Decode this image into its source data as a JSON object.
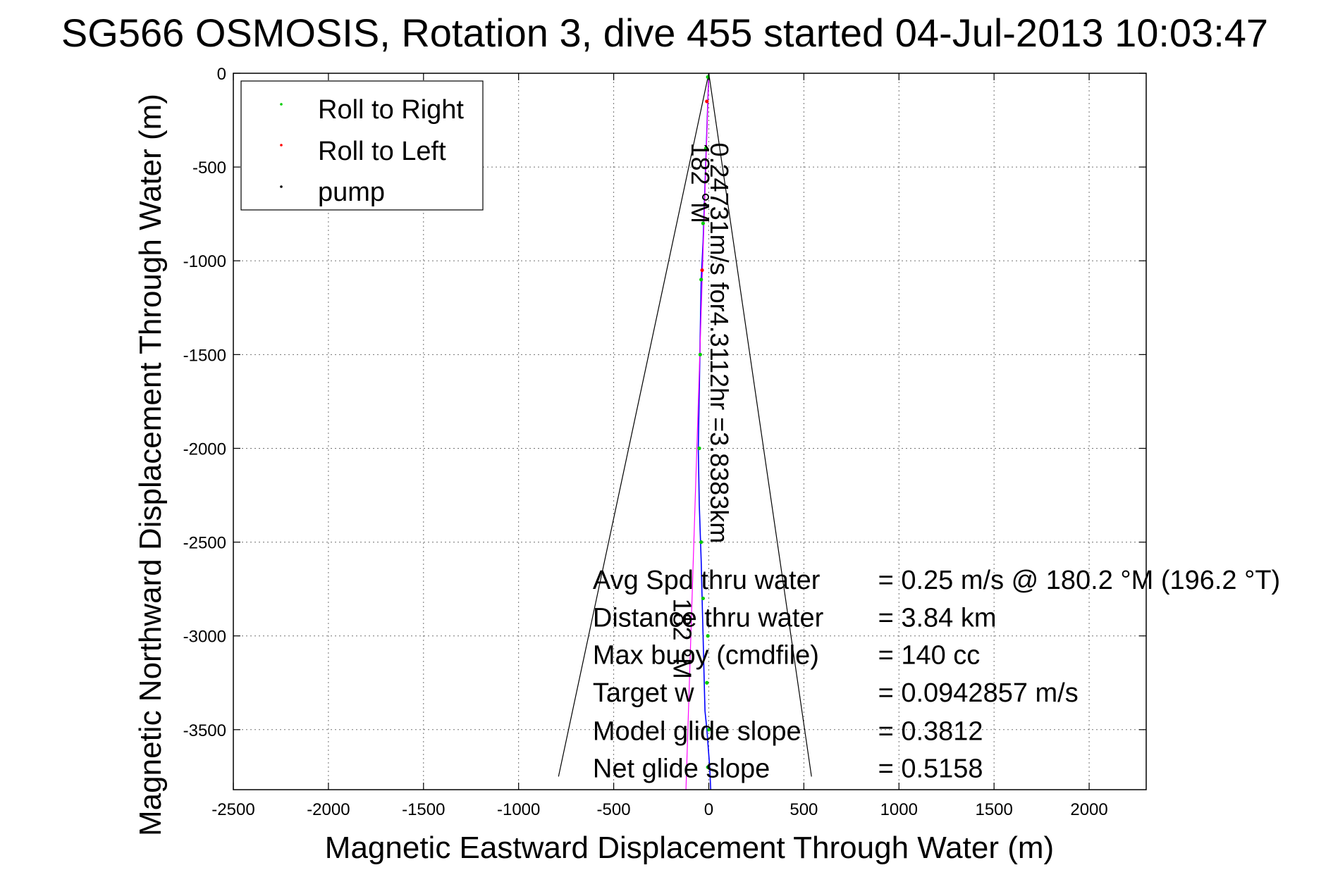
{
  "chart_data": {
    "type": "line",
    "title": "SG566 OSMOSIS, Rotation 3, dive 455 started 04-Jul-2013 10:03:47",
    "xlabel": "Magnetic Eastward Displacement Through Water (m)",
    "ylabel": "Magnetic Northward Displacement Through Water (m)",
    "xlim": [
      -2500,
      2300
    ],
    "ylim": [
      -3820,
      0
    ],
    "xticks": [
      -2500,
      -2000,
      -1500,
      -1000,
      -500,
      0,
      500,
      1000,
      1500,
      2000
    ],
    "yticks": [
      0,
      -500,
      -1000,
      -1500,
      -2000,
      -2500,
      -3000,
      -3500
    ],
    "xtick_labels": [
      "-2500",
      "-2000",
      "-1500",
      "-1000",
      "-500",
      "0",
      "500",
      "1000",
      "1500",
      "2000"
    ],
    "ytick_labels": [
      "0",
      "-500",
      "-1000",
      "-1500",
      "-2000",
      "-2500",
      "-3000",
      "-3500"
    ],
    "grid": true,
    "legend": {
      "placement": "top-left",
      "entries": [
        {
          "label": "Roll to Right",
          "color": "#00cc00"
        },
        {
          "label": "Roll to Left",
          "color": "#ff0000"
        },
        {
          "label": "pump",
          "color": "#000000"
        }
      ]
    },
    "series": [
      {
        "role": "track",
        "color": "#0000ff",
        "x": [
          0,
          -10,
          -20,
          -30,
          -40,
          -45,
          -50,
          -55,
          -50,
          -40,
          -35,
          -30,
          -25,
          -20,
          -10,
          5,
          10
        ],
        "y": [
          0,
          -300,
          -600,
          -900,
          -1100,
          -1400,
          -1700,
          -2000,
          -2300,
          -2600,
          -2800,
          -3000,
          -3200,
          -3400,
          -3500,
          -3700,
          -3820
        ]
      },
      {
        "role": "ideal-course",
        "color": "#ff00ff",
        "x": [
          0,
          -120
        ],
        "y": [
          0,
          -3820
        ]
      },
      {
        "role": "cone-left",
        "color": "#000000",
        "x": [
          0,
          -790
        ],
        "y": [
          0,
          -3750
        ]
      },
      {
        "role": "cone-right",
        "color": "#000000",
        "x": [
          0,
          540
        ],
        "y": [
          0,
          -3750
        ]
      }
    ],
    "markers": {
      "roll_to_right": {
        "color": "#00cc00",
        "x": [
          -5,
          -15,
          -30,
          -40,
          -45,
          -50,
          -40,
          -30,
          -5,
          -10,
          0,
          -5
        ],
        "y": [
          -20,
          -400,
          -800,
          -1100,
          -1500,
          -2000,
          -2500,
          -2800,
          -3000,
          -3250,
          -3500,
          -3700
        ]
      },
      "roll_to_left": {
        "color": "#ff0000",
        "x": [
          -10,
          -35
        ],
        "y": [
          -150,
          -1050
        ]
      },
      "pump": {
        "color": "#000000",
        "x": [
          -20
        ],
        "y": [
          -700
        ]
      }
    },
    "annotations": {
      "vertical_labels": [
        {
          "text": "0.24731m/s for4.3112hr =3.8383km",
          "x": 10,
          "y": -370
        },
        {
          "text": "182 °M",
          "x": -90,
          "y": -370
        },
        {
          "text": "182 °M",
          "x": -185,
          "y": -2800
        }
      ]
    },
    "info_lines": [
      {
        "label": "Avg Spd thru water",
        "value": "=  0.25 m/s @ 180.2 °M (196.2 °T)",
        "y": -2750
      },
      {
        "label": "Distance thru water",
        "value": "=  3.84 km",
        "y": -2950
      },
      {
        "label": "Max buoy (cmdfile)",
        "value": "= 140 cc",
        "y": -3150
      },
      {
        "label": "Target w",
        "value": "= 0.0942857 m/s",
        "y": -3350
      },
      {
        "label": "Model glide slope",
        "value": "= 0.3812",
        "y": -3555
      },
      {
        "label": "Net glide slope",
        "value": "= 0.5158",
        "y": -3755
      }
    ],
    "info_x": [
      -610,
      890
    ]
  }
}
